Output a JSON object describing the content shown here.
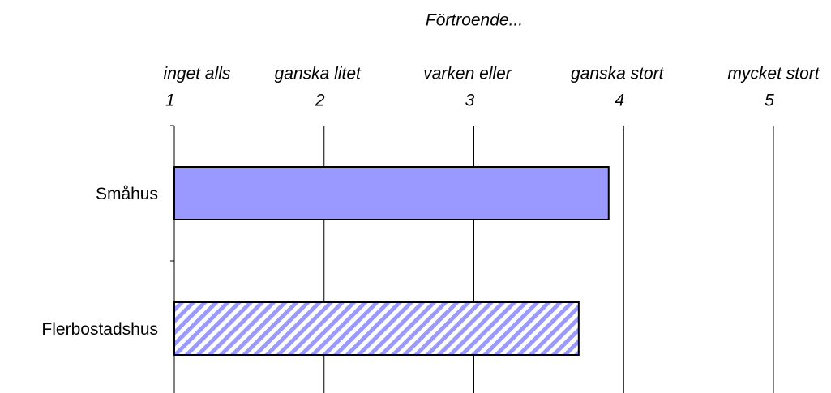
{
  "chart_data": {
    "type": "hbar",
    "title": "Förtroende...",
    "categories": [
      "Småhus",
      "Flerbostadshus"
    ],
    "values": [
      3.9,
      3.7
    ],
    "colors": [
      "#9999ff",
      "#9999ff"
    ],
    "hatch": [
      false,
      true
    ],
    "xlim": [
      1,
      5
    ],
    "xticks": [
      1,
      2,
      3,
      4,
      5
    ],
    "xtick_words": [
      "inget alls",
      "ganska litet",
      "varken eller",
      "ganska stort",
      "mycket stort"
    ],
    "grid": true
  }
}
